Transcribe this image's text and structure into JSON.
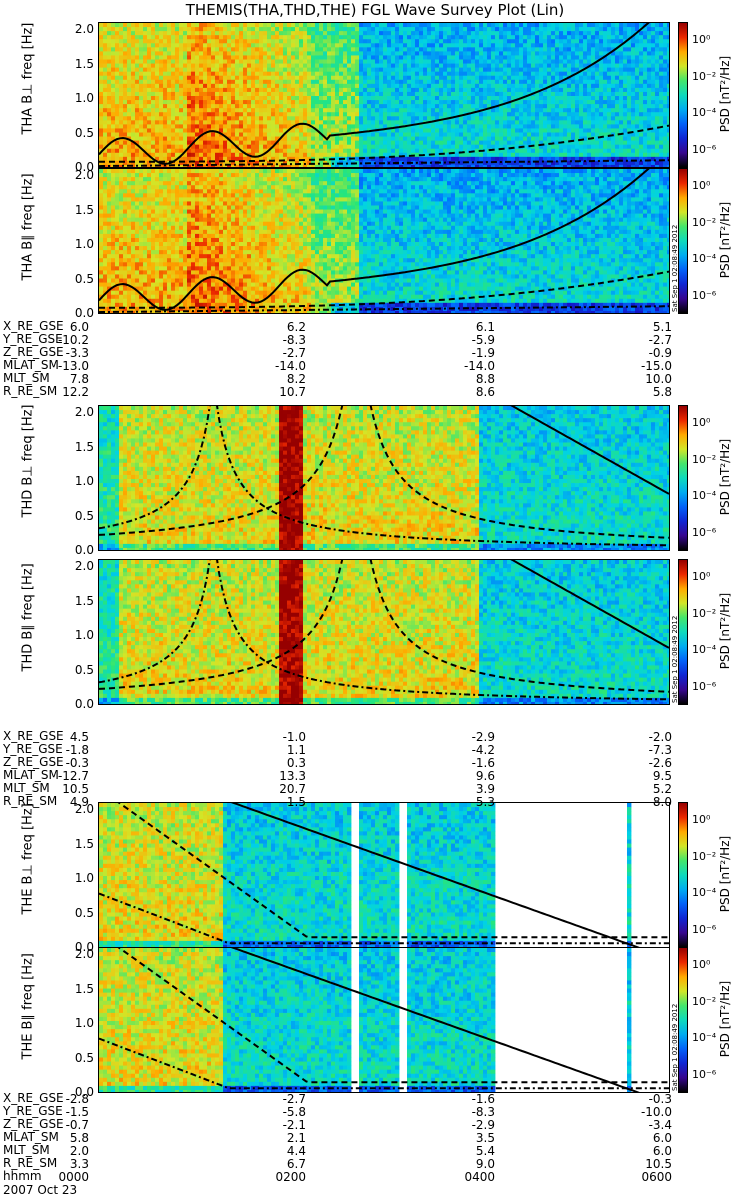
{
  "title": "THEMIS(THA,THD,THE) FGL Wave Survey Plot (Lin)",
  "colorbar": {
    "label": "PSD [nT²/Hz]",
    "ticks": [
      "10⁰",
      "10⁻²",
      "10⁻⁴",
      "10⁻⁶"
    ],
    "tick_values": [
      0,
      -2,
      -4,
      -6
    ],
    "range_log10": [
      -7,
      1
    ]
  },
  "stamp": "Sat Sep 1 02:08:49 2012",
  "chart_data": [
    {
      "type": "heatmap",
      "probe": "THA",
      "component": "B⊥",
      "ylabel": "THA B⊥ freq [Hz]",
      "ylabel_probe": "THA B⊥",
      "ylabel_unit": "freq [Hz]",
      "ylim": [
        0,
        2.0
      ],
      "yticks": [
        "0.0",
        "0.5",
        "1.0",
        "1.5",
        "2.0"
      ]
    },
    {
      "type": "heatmap",
      "probe": "THA",
      "component": "B∥",
      "ylabel": "THA B∥ freq [Hz]",
      "ylabel_probe": "THA B∥",
      "ylabel_unit": "freq [Hz]",
      "ylim": [
        0,
        2.0
      ],
      "yticks": [
        "0.0",
        "0.5",
        "1.0",
        "1.5",
        "2.0"
      ]
    },
    {
      "type": "heatmap",
      "probe": "THD",
      "component": "B⊥",
      "ylabel": "THD B⊥ freq [Hz]",
      "ylabel_probe": "THD B⊥",
      "ylabel_unit": "freq [Hz]",
      "ylim": [
        0,
        2.0
      ],
      "yticks": [
        "0.0",
        "0.5",
        "1.0",
        "1.5",
        "2.0"
      ]
    },
    {
      "type": "heatmap",
      "probe": "THD",
      "component": "B∥",
      "ylabel": "THD B∥ freq [Hz]",
      "ylabel_probe": "THD B∥",
      "ylabel_unit": "freq [Hz]",
      "ylim": [
        0,
        2.0
      ],
      "yticks": [
        "0.0",
        "0.5",
        "1.0",
        "1.5",
        "2.0"
      ]
    },
    {
      "type": "heatmap",
      "probe": "THE",
      "component": "B⊥",
      "ylabel": "THE B⊥ freq [Hz]",
      "ylabel_probe": "THE B⊥",
      "ylabel_unit": "freq [Hz]",
      "ylim": [
        0,
        2.0
      ],
      "yticks": [
        "0.0",
        "0.5",
        "1.0",
        "1.5",
        "2.0"
      ]
    },
    {
      "type": "heatmap",
      "probe": "THE",
      "component": "B∥",
      "ylabel": "THE B∥ freq [Hz]",
      "ylabel_probe": "THE B∥",
      "ylabel_unit": "freq [Hz]",
      "ylim": [
        0,
        2.0
      ],
      "yticks": [
        "0.0",
        "0.5",
        "1.0",
        "1.5",
        "2.0"
      ]
    }
  ],
  "ephemeris": [
    {
      "probe": "THA",
      "rows": [
        {
          "label": "X_RE_GSE",
          "values": [
            "6.0",
            "6.2",
            "6.1",
            "5.1"
          ]
        },
        {
          "label": "Y_RE_GSE",
          "values": [
            "-10.2",
            "-8.3",
            "-5.9",
            "-2.7"
          ]
        },
        {
          "label": "Z_RE_GSE",
          "values": [
            "-3.3",
            "-2.7",
            "-1.9",
            "-0.9"
          ]
        },
        {
          "label": "MLAT_SM",
          "values": [
            "-13.0",
            "-14.0",
            "-14.0",
            "-15.0"
          ]
        },
        {
          "label": "MLT_SM",
          "values": [
            "7.8",
            "8.2",
            "8.8",
            "10.0"
          ]
        },
        {
          "label": "R_RE_SM",
          "values": [
            "12.2",
            "10.7",
            "8.6",
            "5.8"
          ]
        }
      ]
    },
    {
      "probe": "THD",
      "rows": [
        {
          "label": "X_RE_GSE",
          "values": [
            "4.5",
            "-1.0",
            "-2.9",
            "-2.0"
          ]
        },
        {
          "label": "Y_RE_GSE",
          "values": [
            "-1.8",
            "1.1",
            "-4.2",
            "-7.3"
          ]
        },
        {
          "label": "Z_RE_GSE",
          "values": [
            "-0.3",
            "0.3",
            "-1.6",
            "-2.6"
          ]
        },
        {
          "label": "MLAT_SM",
          "values": [
            "-12.7",
            "13.3",
            "9.6",
            "9.5"
          ]
        },
        {
          "label": "MLT_SM",
          "values": [
            "10.5",
            "20.7",
            "3.9",
            "5.2"
          ]
        },
        {
          "label": "R_RE_SM",
          "values": [
            "4.9",
            "1.5",
            "5.3",
            "8.0"
          ]
        }
      ]
    },
    {
      "probe": "THE",
      "rows": [
        {
          "label": "X_RE_GSE",
          "values": [
            "-2.8",
            "-2.7",
            "-1.6",
            "-0.3"
          ]
        },
        {
          "label": "Y_RE_GSE",
          "values": [
            "-1.5",
            "-5.8",
            "-8.3",
            "-10.0"
          ]
        },
        {
          "label": "Z_RE_GSE",
          "values": [
            "-0.7",
            "-2.1",
            "-2.9",
            "-3.4"
          ]
        },
        {
          "label": "MLAT_SM",
          "values": [
            "5.8",
            "2.1",
            "3.5",
            "6.0"
          ]
        },
        {
          "label": "MLT_SM",
          "values": [
            "2.0",
            "4.4",
            "5.4",
            "6.0"
          ]
        },
        {
          "label": "R_RE_SM",
          "values": [
            "3.3",
            "6.7",
            "9.0",
            "10.5"
          ]
        }
      ]
    }
  ],
  "time_axis": {
    "label": "hhmm",
    "ticks": [
      "0000",
      "0200",
      "0400",
      "0600"
    ],
    "date": "2007 Oct 23"
  }
}
